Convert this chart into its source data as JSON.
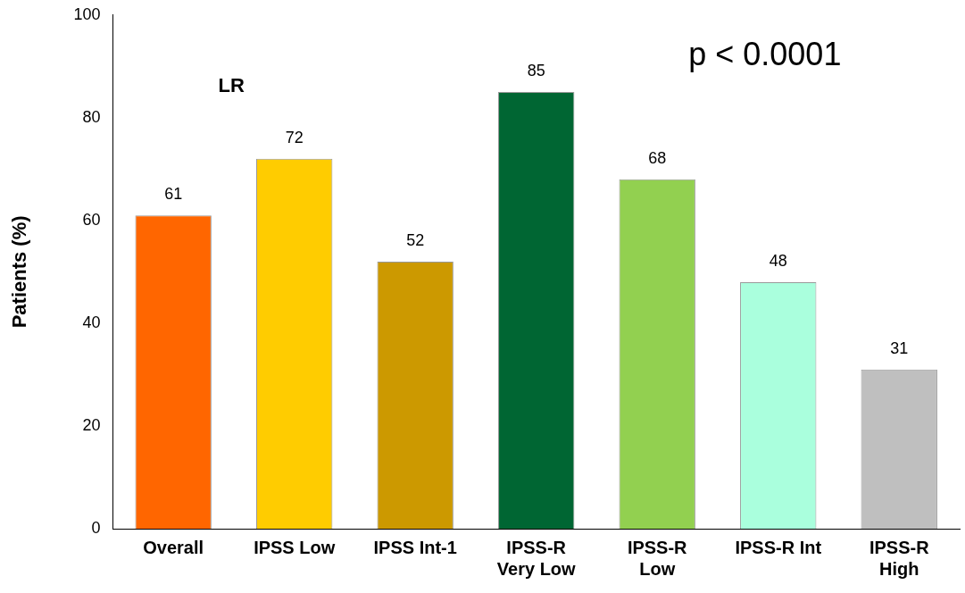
{
  "chart_data": {
    "type": "bar",
    "ylabel": "Patients (%)",
    "annotations": [
      "LR",
      "p < 0.0001"
    ],
    "categories": [
      "Overall",
      "IPSS Low",
      "IPSS Int-1",
      "IPSS-R Very Low",
      "IPSS-R Low",
      "IPSS-R Int",
      "IPSS-R High"
    ],
    "values": [
      61,
      72,
      52,
      85,
      68,
      48,
      31
    ],
    "colors": [
      "#ff6600",
      "#ffcc00",
      "#cc9900",
      "#006633",
      "#92d050",
      "#aaffdd",
      "#bfbfbf"
    ],
    "ylim": [
      0,
      100
    ],
    "yticks": [
      0,
      20,
      40,
      60,
      80,
      100
    ],
    "data_labels": true,
    "grid": false,
    "legend": false
  }
}
